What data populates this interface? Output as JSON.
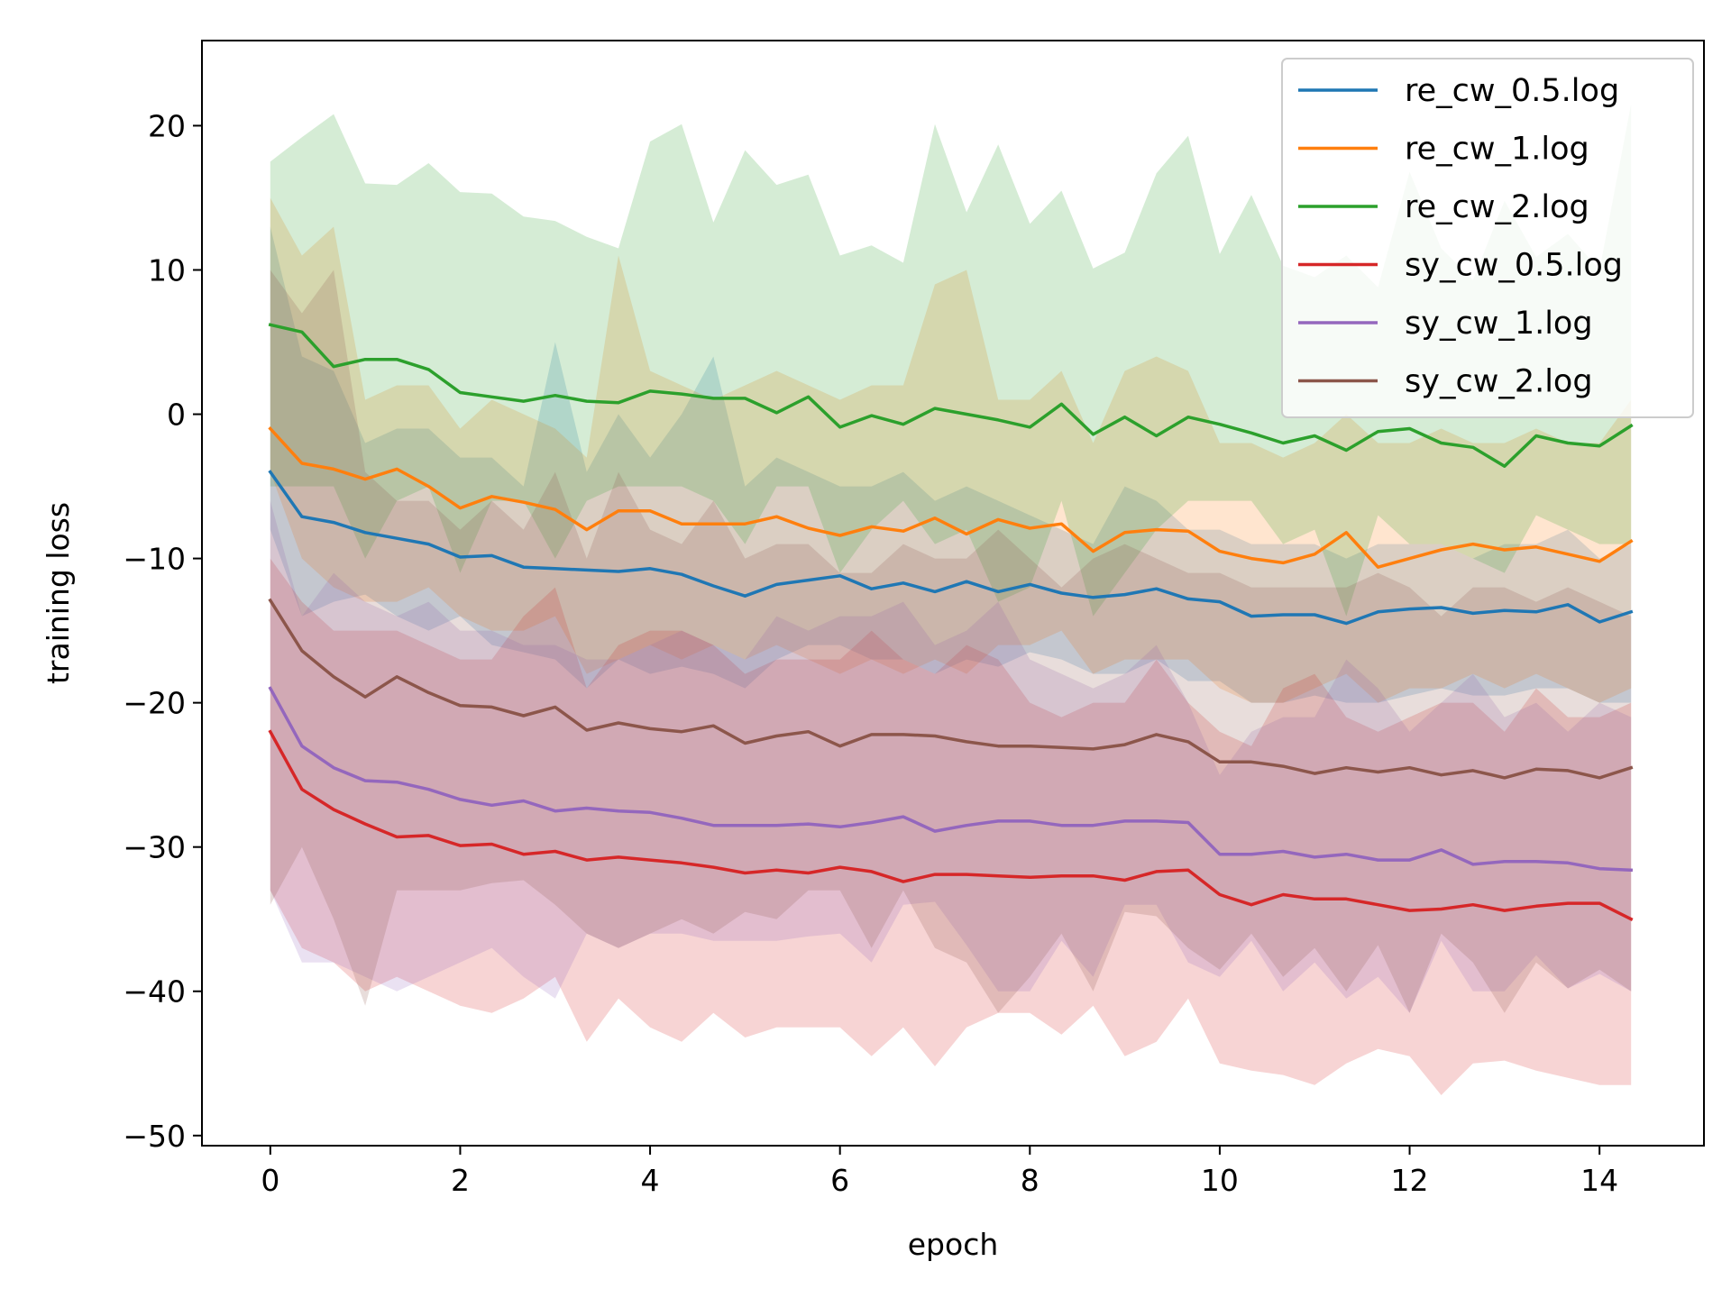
{
  "chart_data": {
    "type": "line",
    "xlabel": "epoch",
    "ylabel": "training loss",
    "xlim": [
      -0.72,
      15.1
    ],
    "ylim": [
      -50.7,
      25.9
    ],
    "xticks": [
      0,
      2,
      4,
      6,
      8,
      10,
      12,
      14
    ],
    "yticks": [
      -50,
      -40,
      -30,
      -20,
      -10,
      0,
      10,
      20
    ],
    "grid": false,
    "legend_position": "top-right",
    "x": [
      0,
      0.333,
      0.667,
      1,
      1.333,
      1.667,
      2,
      2.333,
      2.667,
      3,
      3.333,
      3.667,
      4,
      4.333,
      4.667,
      5,
      5.333,
      5.667,
      6,
      6.333,
      6.667,
      7,
      7.333,
      7.667,
      8,
      8.333,
      8.667,
      9,
      9.333,
      9.667,
      10,
      10.333,
      10.667,
      11,
      11.333,
      11.667,
      12,
      12.333,
      12.667,
      13,
      13.333,
      13.667,
      14,
      14.333
    ],
    "series": [
      {
        "name": "re_cw_0.5.log",
        "color": "#1f77b4",
        "values": [
          -4,
          -7.1,
          -7.5,
          -8.2,
          -8.6,
          -9,
          -9.9,
          -9.8,
          -10.6,
          -10.7,
          -10.8,
          -10.9,
          -10.7,
          -11.1,
          -11.9,
          -12.6,
          -11.8,
          -11.5,
          -11.2,
          -12.1,
          -11.7,
          -12.3,
          -11.6,
          -12.3,
          -11.8,
          -12.4,
          -12.7,
          -12.5,
          -12.1,
          -12.8,
          -13,
          -14,
          -13.9,
          -13.9,
          -14.5,
          -13.7,
          -13.5,
          -13.4,
          -13.8,
          -13.6,
          -13.7,
          -13.2,
          -14.4,
          -13.7
        ],
        "lower": [
          -8,
          -14,
          -13,
          -12.5,
          -14,
          -15,
          -14,
          -16,
          -16.5,
          -17,
          -19,
          -17,
          -18,
          -17.5,
          -18,
          -19,
          -17,
          -16,
          -16,
          -17,
          -17,
          -18,
          -17,
          -17.5,
          -16.5,
          -17,
          -18,
          -18,
          -17,
          -18.5,
          -18.5,
          -20,
          -20,
          -19.5,
          -20,
          -20,
          -19.5,
          -19,
          -19.5,
          -19.5,
          -19,
          -19,
          -20,
          -20
        ],
        "upper": [
          13,
          4,
          3,
          -2,
          -1,
          -1,
          -3,
          -3,
          -5,
          5,
          -4,
          0,
          -3,
          0,
          4,
          -5,
          -3,
          -4,
          -5,
          -5,
          -4,
          -6,
          -5,
          -6,
          -7,
          -8,
          -9,
          -5,
          -6,
          -8,
          -8,
          -9,
          -9,
          -9,
          -10,
          -9,
          -9,
          -9,
          -10,
          -9,
          -9,
          -8,
          -10,
          -9
        ]
      },
      {
        "name": "re_cw_1.log",
        "color": "#ff7f0e",
        "values": [
          -1,
          -3.4,
          -3.8,
          -4.5,
          -3.8,
          -5,
          -6.5,
          -5.7,
          -6.1,
          -6.6,
          -8,
          -6.7,
          -6.7,
          -7.6,
          -7.6,
          -7.6,
          -7.1,
          -7.9,
          -8.4,
          -7.8,
          -8.1,
          -7.2,
          -8.3,
          -7.3,
          -7.9,
          -7.6,
          -9.5,
          -8.2,
          -8,
          -8.1,
          -9.5,
          -10,
          -10.3,
          -9.7,
          -8.2,
          -10.6,
          -10,
          -9.4,
          -9,
          -9.4,
          -9.2,
          -9.7,
          -10.2,
          -8.8
        ],
        "lower": [
          -4,
          -10,
          -12,
          -13,
          -13,
          -12,
          -14,
          -15,
          -15,
          -14,
          -18,
          -17,
          -16,
          -17,
          -16,
          -17,
          -16,
          -17,
          -18,
          -17,
          -18,
          -17,
          -18,
          -16,
          -16,
          -15,
          -18,
          -17,
          -17,
          -17,
          -19,
          -20,
          -20,
          -19,
          -18,
          -20,
          -19,
          -19,
          -18,
          -19,
          -18,
          -19,
          -20,
          -19
        ],
        "upper": [
          15,
          11,
          13,
          1,
          2,
          2,
          -1,
          1,
          0,
          -1,
          -3,
          11,
          3,
          2,
          1,
          2,
          3,
          2,
          1,
          2,
          2,
          9,
          10,
          1,
          1,
          3,
          -2,
          3,
          4,
          3,
          -2,
          -2,
          -3,
          -2,
          0,
          -2,
          -2,
          -1,
          -2,
          -2,
          -1,
          -2,
          -2,
          1
        ]
      },
      {
        "name": "re_cw_2.log",
        "color": "#2ca02c",
        "values": [
          6.2,
          5.7,
          3.3,
          3.8,
          3.8,
          3.1,
          1.5,
          1.2,
          0.9,
          1.3,
          0.9,
          0.8,
          1.6,
          1.4,
          1.1,
          1.1,
          0.1,
          1.2,
          -0.9,
          -0.1,
          -0.7,
          0.4,
          0,
          -0.4,
          -0.9,
          0.7,
          -1.4,
          -0.2,
          -1.5,
          -0.2,
          -0.7,
          -1.3,
          -2,
          -1.5,
          -2.5,
          -1.2,
          -1,
          -2,
          -2.3,
          -3.6,
          -1.5,
          -2,
          -2.2,
          -0.8
        ],
        "lower": [
          -5,
          -5,
          -5,
          -10,
          -6,
          -5,
          -11,
          -6,
          -6,
          -10,
          -6,
          -5,
          -5,
          -5,
          -6,
          -9,
          -5,
          -5,
          -11,
          -8,
          -6,
          -9,
          -8,
          -13,
          -12,
          -6,
          -14,
          -11,
          -8,
          -6,
          -6,
          -6,
          -9,
          -8,
          -14,
          -7,
          -9,
          -9,
          -10,
          -11,
          -7,
          -8,
          -9,
          -9
        ],
        "upper": [
          17.5,
          19.2,
          20.8,
          16,
          15.9,
          17.4,
          15.4,
          15.3,
          13.7,
          13.4,
          12.3,
          11.5,
          18.9,
          20.1,
          13.3,
          18.3,
          15.9,
          16.6,
          11,
          11.7,
          10.5,
          20.1,
          14,
          18.7,
          13.2,
          15.5,
          10.1,
          11.2,
          16.7,
          19.3,
          11.1,
          15.2,
          10.3,
          9.5,
          11,
          8.8,
          16.8,
          11.5,
          9.3,
          14.8,
          10.9,
          12.5,
          10,
          21.5
        ]
      },
      {
        "name": "sy_cw_0.5.log",
        "color": "#d62728",
        "values": [
          -22,
          -26,
          -27.4,
          -28.4,
          -29.3,
          -29.2,
          -29.9,
          -29.8,
          -30.5,
          -30.3,
          -30.9,
          -30.7,
          -30.9,
          -31.1,
          -31.4,
          -31.8,
          -31.6,
          -31.8,
          -31.4,
          -31.7,
          -32.4,
          -31.9,
          -31.9,
          -32,
          -32.1,
          -32,
          -32,
          -32.3,
          -31.7,
          -31.6,
          -33.3,
          -34,
          -33.3,
          -33.6,
          -33.6,
          -34,
          -34.4,
          -34.3,
          -34,
          -34.4,
          -34.1,
          -33.9,
          -33.9,
          -35
        ],
        "lower": [
          -33,
          -37,
          -38,
          -40,
          -39,
          -40,
          -41,
          -41.5,
          -40.5,
          -39,
          -43.5,
          -40.5,
          -42.5,
          -43.5,
          -41.5,
          -43.2,
          -42.5,
          -42.5,
          -42.5,
          -44.5,
          -42.5,
          -45.2,
          -42.5,
          -41.5,
          -41.5,
          -43,
          -41,
          -44.5,
          -43.5,
          -40.5,
          -45,
          -45.5,
          -45.8,
          -46.5,
          -45,
          -44,
          -44.5,
          -47.2,
          -45,
          -44.8,
          -45.5,
          -46,
          -46.5,
          -46.5
        ],
        "upper": [
          -10,
          -13,
          -15,
          -15,
          -15,
          -16,
          -17,
          -17,
          -14,
          -12,
          -19,
          -16,
          -15,
          -15,
          -16,
          -18,
          -17,
          -17,
          -17,
          -15,
          -17,
          -18,
          -16,
          -17,
          -20,
          -21,
          -20,
          -20,
          -17,
          -20,
          -22,
          -23,
          -19,
          -18,
          -21,
          -22,
          -21,
          -20,
          -20,
          -22,
          -19,
          -21,
          -21,
          -20
        ]
      },
      {
        "name": "sy_cw_1.log",
        "color": "#9467bd",
        "values": [
          -19,
          -23,
          -24.5,
          -25.4,
          -25.5,
          -26,
          -26.7,
          -27.1,
          -26.8,
          -27.5,
          -27.3,
          -27.5,
          -27.6,
          -28,
          -28.5,
          -28.5,
          -28.5,
          -28.4,
          -28.6,
          -28.3,
          -27.9,
          -28.9,
          -28.5,
          -28.2,
          -28.2,
          -28.5,
          -28.5,
          -28.2,
          -28.2,
          -28.3,
          -30.5,
          -30.5,
          -30.3,
          -30.7,
          -30.5,
          -30.9,
          -30.9,
          -30.2,
          -31.2,
          -31,
          -31,
          -31.1,
          -31.5,
          -31.6
        ],
        "lower": [
          -33,
          -38,
          -38,
          -39,
          -40,
          -39,
          -38,
          -37,
          -39,
          -40.5,
          -36,
          -37,
          -36,
          -36,
          -36.5,
          -36.5,
          -36.5,
          -36.2,
          -36,
          -38,
          -34,
          -33.8,
          -36.8,
          -40,
          -40,
          -36.5,
          -39,
          -34,
          -34,
          -38,
          -39,
          -36.5,
          -40,
          -38,
          -40.5,
          -39,
          -41.5,
          -36.5,
          -40,
          -40,
          -37.5,
          -39.8,
          -38.8,
          -40
        ],
        "upper": [
          -6,
          -14,
          -11,
          -13,
          -14,
          -13,
          -15,
          -15,
          -16,
          -16,
          -17,
          -17,
          -16,
          -15,
          -16,
          -17,
          -14,
          -15,
          -14,
          -14,
          -13,
          -16,
          -15,
          -13,
          -17,
          -18,
          -19,
          -18,
          -16,
          -20,
          -25,
          -22,
          -21,
          -21,
          -17,
          -19,
          -22,
          -20,
          -18,
          -21,
          -20,
          -22,
          -20,
          -21
        ]
      },
      {
        "name": "sy_cw_2.log",
        "color": "#8c564b",
        "values": [
          -12.9,
          -16.4,
          -18.2,
          -19.6,
          -18.2,
          -19.3,
          -20.2,
          -20.3,
          -20.9,
          -20.3,
          -21.9,
          -21.4,
          -21.8,
          -22,
          -21.6,
          -22.8,
          -22.3,
          -22,
          -23,
          -22.2,
          -22.2,
          -22.3,
          -22.7,
          -23,
          -23,
          -23.1,
          -23.2,
          -22.9,
          -22.2,
          -22.7,
          -24.1,
          -24.1,
          -24.4,
          -24.9,
          -24.5,
          -24.8,
          -24.5,
          -25,
          -24.7,
          -25.2,
          -24.6,
          -24.7,
          -25.2,
          -24.5
        ],
        "lower": [
          -34,
          -30,
          -35,
          -41,
          -33,
          -33,
          -33,
          -32.5,
          -32.3,
          -34,
          -36,
          -37,
          -36,
          -35,
          -36,
          -34.5,
          -35,
          -33,
          -33,
          -37,
          -33,
          -37,
          -38,
          -41.5,
          -39,
          -36,
          -40,
          -34.5,
          -34.8,
          -37,
          -38.5,
          -36,
          -39,
          -37,
          -40,
          -36.8,
          -41.5,
          -36,
          -38,
          -41.5,
          -38,
          -39.8,
          -38.5,
          -40
        ],
        "upper": [
          10,
          7,
          10,
          -4,
          -6,
          -6,
          -8,
          -6,
          -8,
          -4,
          -10,
          -4,
          -8,
          -9,
          -6,
          -10,
          -9,
          -9,
          -11,
          -11,
          -9,
          -10,
          -10,
          -8,
          -10,
          -12,
          -10,
          -9,
          -10,
          -11,
          -11,
          -12,
          -12,
          -12,
          -12,
          -11,
          -12,
          -14,
          -12,
          -12,
          -13,
          -12,
          -13,
          -14
        ]
      }
    ]
  }
}
